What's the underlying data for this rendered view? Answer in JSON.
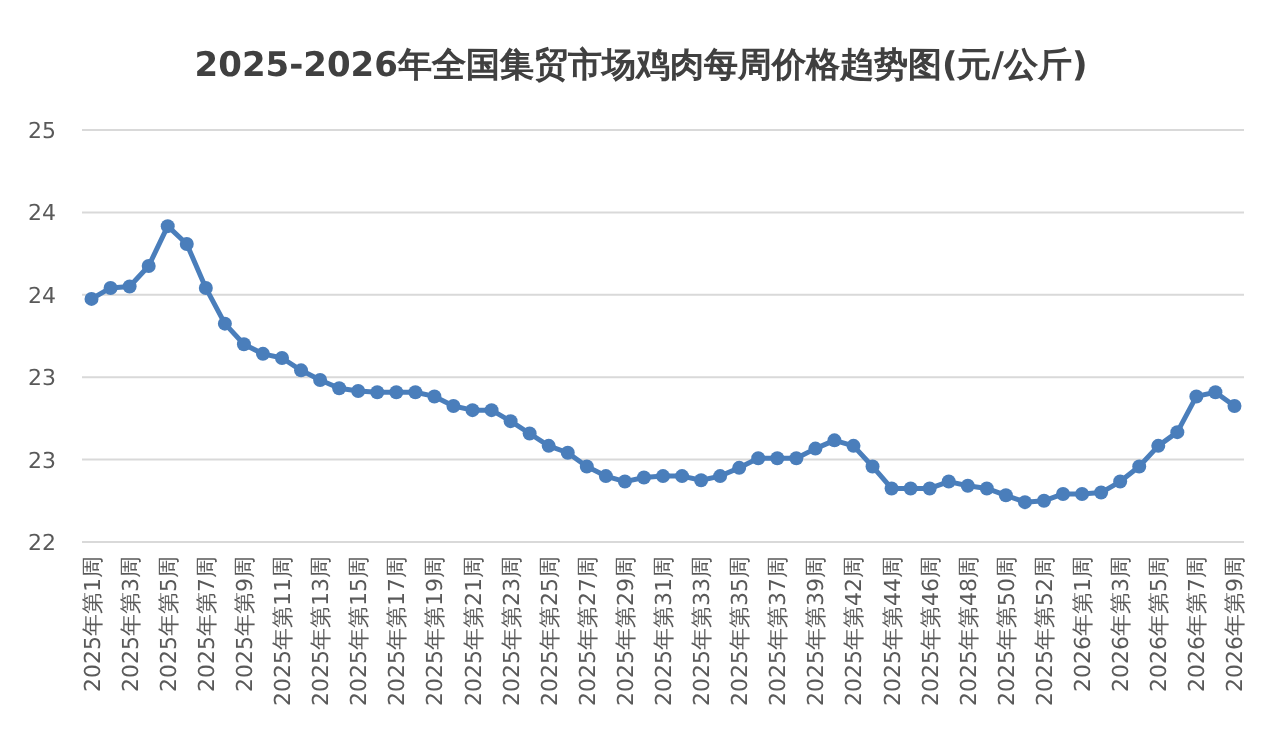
{
  "chart_data": {
    "type": "line",
    "title": "2025-2026年全国集贸市场鸡肉每周价格趋势图(元/公斤)",
    "categories": [
      "2025年第1周",
      null,
      "2025年第3周",
      null,
      "2025年第5周",
      null,
      "2025年第7周",
      null,
      "2025年第9周",
      null,
      "2025年第11周",
      null,
      "2025年第13周",
      null,
      "2025年第15周",
      null,
      "2025年第17周",
      null,
      "2025年第19周",
      null,
      "2025年第21周",
      null,
      "2025年第23周",
      null,
      "2025年第25周",
      null,
      "2025年第27周",
      null,
      "2025年第29周",
      null,
      "2025年第31周",
      null,
      "2025年第33周",
      null,
      "2025年第35周",
      null,
      "2025年第37周",
      null,
      "2025年第39周",
      null,
      "2025年第42周",
      null,
      "2025年第44周",
      null,
      "2025年第46周",
      null,
      "2025年第48周",
      null,
      "2025年第50周",
      null,
      "2025年第52周",
      null,
      "2026年第1周",
      null,
      "2026年第3周",
      null,
      "2026年第5周",
      null,
      "2026年第7周",
      null,
      "2026年第9周"
    ],
    "series": [
      {
        "color": "#4a7ebb",
        "values": [
          23.77,
          23.85,
          23.86,
          24.01,
          24.3,
          24.17,
          23.85,
          23.59,
          23.44,
          23.37,
          23.34,
          23.25,
          23.18,
          23.12,
          23.1,
          23.09,
          23.09,
          23.09,
          23.06,
          22.99,
          22.96,
          22.96,
          22.88,
          22.79,
          22.7,
          22.65,
          22.55,
          22.48,
          22.44,
          22.47,
          22.48,
          22.48,
          22.45,
          22.48,
          22.54,
          22.61,
          22.61,
          22.61,
          22.68,
          22.74,
          22.7,
          22.55,
          22.39,
          22.39,
          22.39,
          22.44,
          22.41,
          22.39,
          22.34,
          22.29,
          22.3,
          22.35,
          22.35,
          22.36,
          22.44,
          22.55,
          22.7,
          22.8,
          23.06,
          23.09,
          22.99
        ]
      }
    ],
    "ylim": [
      22,
      25
    ],
    "yticks": [
      22,
      {
        "value": 22.6,
        "label": "23"
      },
      {
        "value": 23.2,
        "label": "23"
      },
      {
        "value": 23.8,
        "label": "24"
      },
      {
        "value": 24.4,
        "label": "24"
      },
      25
    ],
    "grid": "y",
    "marker": "circle",
    "line_style": "solid"
  }
}
